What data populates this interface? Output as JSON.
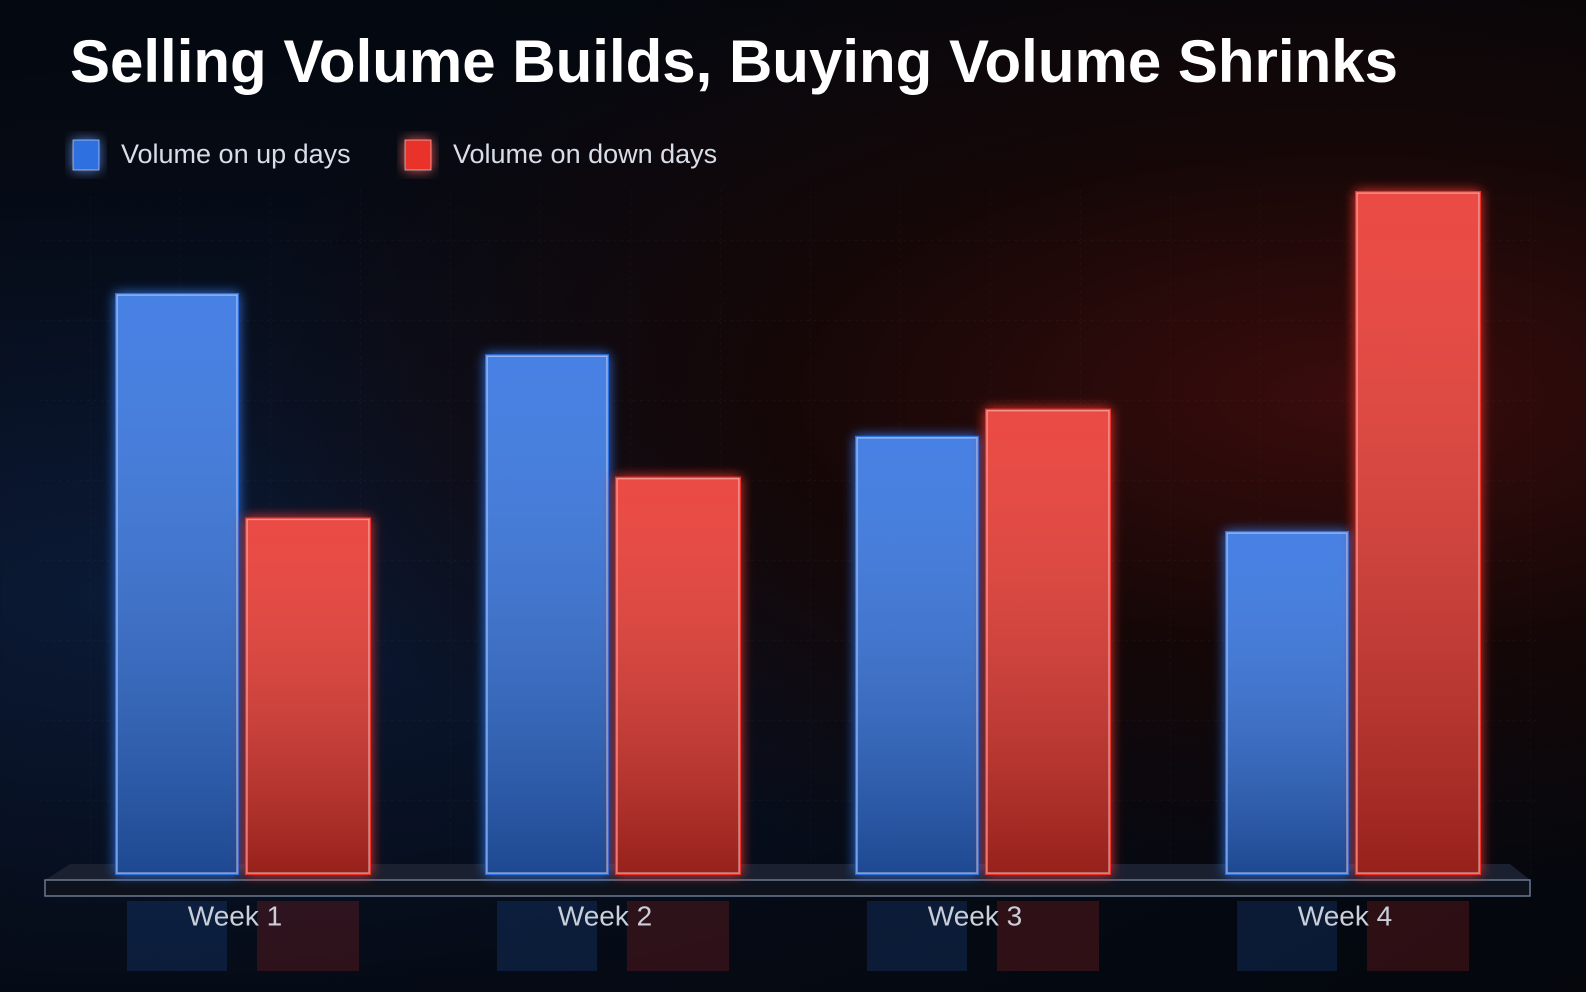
{
  "chart_data": {
    "type": "bar",
    "title": "Selling Volume Builds, Buying Volume Shrinks",
    "categories": [
      "Week 1",
      "Week 2",
      "Week 3",
      "Week 4"
    ],
    "series": [
      {
        "name": "Volume on up days",
        "color": "#2f6fe0",
        "values": [
          85,
          76,
          64,
          50
        ]
      },
      {
        "name": "Volume on down days",
        "color": "#e8322a",
        "values": [
          52,
          58,
          68,
          100
        ]
      }
    ],
    "ylim": [
      0,
      100
    ]
  }
}
